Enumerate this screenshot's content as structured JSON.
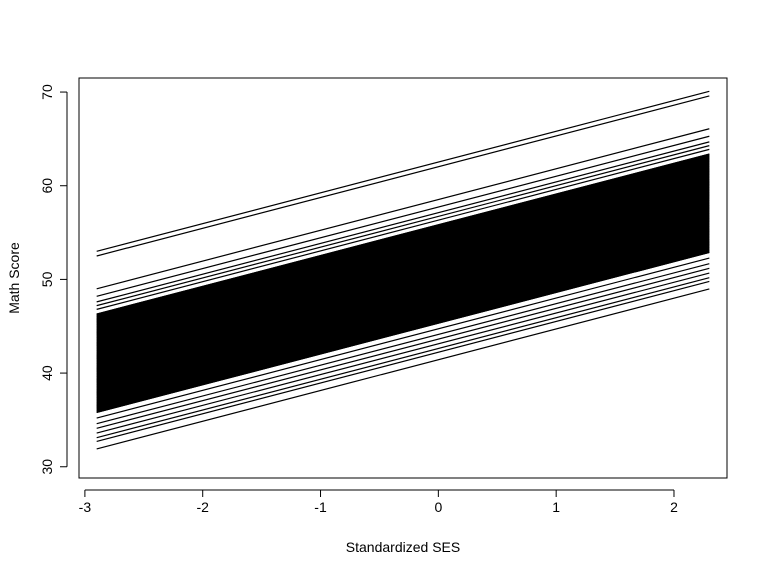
{
  "chart_data": {
    "type": "line",
    "title": "",
    "xlabel": "Standardized SES",
    "ylabel": "Math Score",
    "xlim": [
      -3.05,
      2.45
    ],
    "ylim": [
      28.8,
      71.5
    ],
    "x_ticks": [
      -3,
      -2,
      -1,
      0,
      1,
      2
    ],
    "y_ticks": [
      30,
      40,
      50,
      60,
      70
    ],
    "x_tick_labels": [
      "-3",
      "-2",
      "-1",
      "0",
      "1",
      "2"
    ],
    "y_tick_labels": [
      "30",
      "40",
      "50",
      "60",
      "70"
    ],
    "x_range": [
      -2.9,
      2.3
    ],
    "slope": 3.285,
    "intercepts_at_x_min": [
      53.0,
      52.5,
      49.0,
      48.2,
      47.6,
      47.2,
      46.8,
      46.3,
      35.8,
      35.2,
      34.6,
      34.1,
      33.6,
      33.1,
      32.7,
      31.9
    ],
    "dense_band": {
      "intercept_min_at_x_min": 35.8,
      "intercept_max_at_x_min": 46.3,
      "n_lines": 160
    },
    "line_color": "#000000",
    "grid": false,
    "legend": "none"
  }
}
